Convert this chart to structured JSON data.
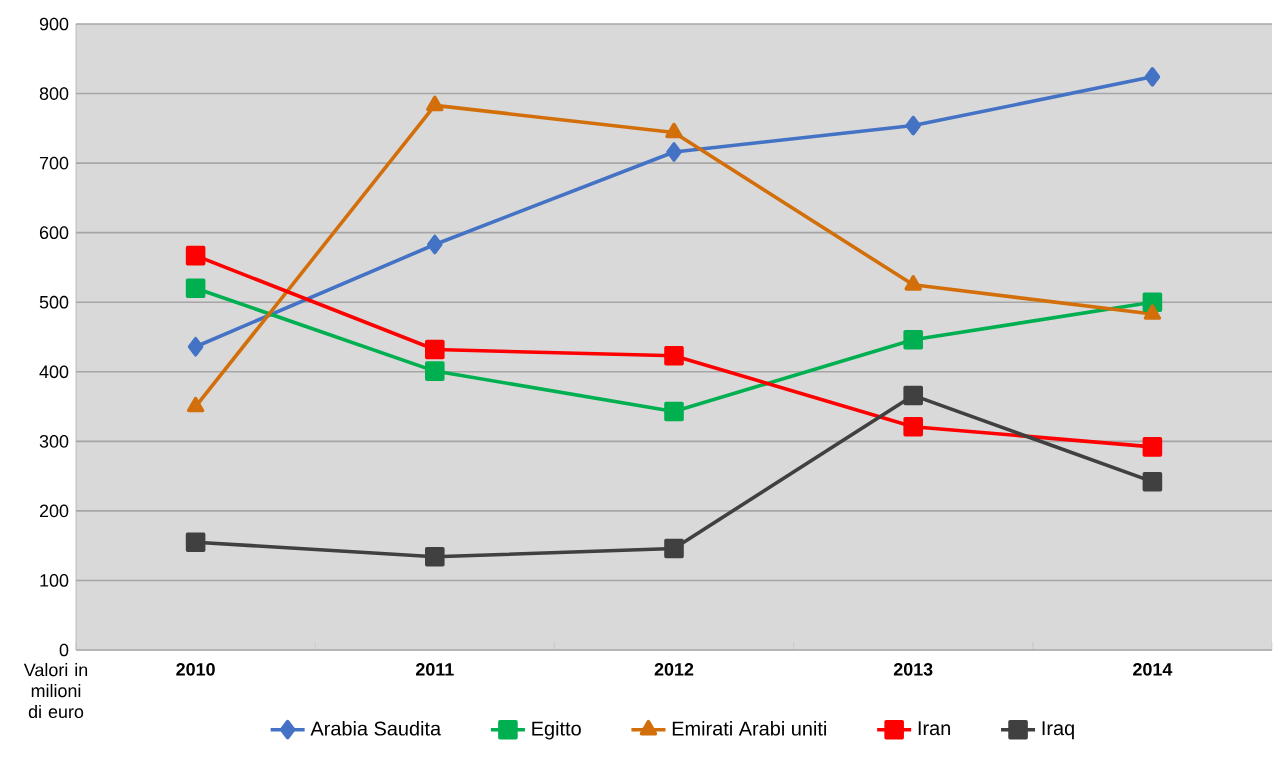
{
  "chart_data": {
    "type": "line",
    "ylabel": "Valori in milioni di euro",
    "categories": [
      "**2010**",
      "**2011**",
      "**2012**",
      "**2013**",
      "**2014**"
    ],
    "series": [
      {
        "name": "Arabia Saudita",
        "color": "#4472c4",
        "marker": "diamond",
        "values": [
          436,
          583,
          716,
          754,
          824
        ]
      },
      {
        "name": "Egitto",
        "color": "#00b050",
        "marker": "square",
        "values": [
          520,
          401,
          343,
          446,
          500
        ]
      },
      {
        "name": "Emirati Arabi uniti",
        "color": "#d26f0a",
        "marker": "triangle",
        "values": [
          350,
          783,
          744,
          525,
          483
        ]
      },
      {
        "name": "Iran",
        "color": "#ff0000",
        "marker": "square",
        "values": [
          567,
          432,
          423,
          321,
          292
        ]
      },
      {
        "name": "Iraq",
        "color": "#404040",
        "marker": "square",
        "values": [
          155,
          134,
          146,
          366,
          242
        ]
      }
    ],
    "ylim": [
      0,
      900
    ],
    "yticks": [
      0,
      100,
      200,
      300,
      400,
      500,
      600,
      700,
      800,
      900
    ],
    "grid": "y",
    "legend": "bottom",
    "line_style": "solid"
  }
}
